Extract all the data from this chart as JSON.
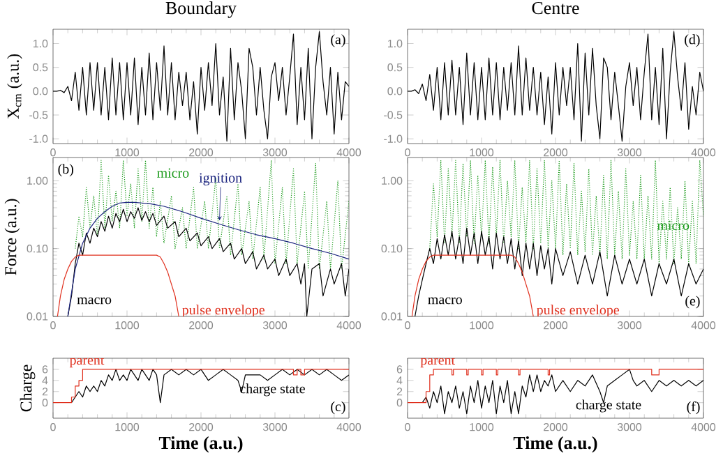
{
  "chart_data": [
    {
      "type": "line",
      "title": "Boundary",
      "ylabel": "X$_{cm}$  (a.u.)",
      "xlim": [
        0,
        4000
      ],
      "ylim": [
        -1.1,
        1.3
      ],
      "xticks": [
        0,
        1000,
        2000,
        3000,
        4000
      ],
      "yticks": [
        {
          "value": -1,
          "label": "-1.0"
        },
        {
          "value": -0.5,
          "label": "-0.5"
        },
        {
          "value": 0,
          "label": "0.0"
        },
        {
          "value": 0.5,
          "label": "0.5"
        },
        {
          "value": 1,
          "label": "1.0"
        }
      ],
      "annotations": [
        "(a)"
      ],
      "series": [
        {
          "color": "#000000",
          "x": [
            0,
            50,
            100,
            150,
            200,
            250,
            300,
            350,
            400,
            450,
            500,
            550,
            600,
            650,
            700,
            750,
            800,
            850,
            900,
            950,
            1000,
            1050,
            1100,
            1150,
            1200,
            1250,
            1300,
            1350,
            1400,
            1450,
            1500,
            1550,
            1600,
            1650,
            1700,
            1750,
            1800,
            1850,
            1900,
            1950,
            2000,
            2050,
            2100,
            2150,
            2200,
            2250,
            2300,
            2350,
            2400,
            2450,
            2500,
            2550,
            2600,
            2650,
            2700,
            2750,
            2800,
            2850,
            2900,
            2950,
            3000,
            3050,
            3100,
            3150,
            3200,
            3250,
            3300,
            3350,
            3400,
            3450,
            3500,
            3550,
            3600,
            3650,
            3700,
            3750,
            3800,
            3850,
            3900,
            3950,
            4000
          ],
          "values": [
            0,
            0,
            0.02,
            -0.03,
            0.1,
            -0.2,
            0.4,
            -0.4,
            0.5,
            -0.5,
            0.6,
            -0.4,
            0.6,
            -0.5,
            0.5,
            -0.6,
            0.7,
            -0.5,
            0.6,
            -0.6,
            0.6,
            -0.5,
            0.7,
            -0.7,
            0.5,
            -0.5,
            0.8,
            -0.6,
            0.6,
            -0.4,
            0.95,
            -0.5,
            0.6,
            -0.6,
            0.4,
            -0.3,
            0.4,
            -0.6,
            0.2,
            -0.9,
            0.5,
            -0.4,
            0.6,
            -0.3,
            1.0,
            -0.5,
            0.3,
            -1.05,
            0.9,
            -0.6,
            0.6,
            0.0,
            -1.0,
            0.9,
            0.5,
            -0.5,
            0.5,
            -0.4,
            -1.0,
            0.3,
            0.6,
            -0.2,
            0.5,
            -0.5,
            0.3,
            1.2,
            -0.7,
            0.5,
            -0.6,
            0.9,
            -1.0,
            0.5,
            1.25,
            0.2,
            -0.5,
            0.5,
            -0.9,
            0.4,
            -0.6,
            0.2,
            0.1
          ]
        }
      ]
    },
    {
      "type": "line",
      "ylabel": "Force  (a.u.)",
      "log": "y",
      "xlim": [
        0,
        4000
      ],
      "ylim": [
        0.01,
        2.2
      ],
      "xticks": [
        0,
        1000,
        2000,
        3000,
        4000
      ],
      "yticks": [
        {
          "value": 0.01,
          "label": "0.01"
        },
        {
          "value": 0.1,
          "label": "0.10"
        },
        {
          "value": 1,
          "label": "1.00"
        }
      ],
      "annotations": [
        "(b)"
      ],
      "series": [
        {
          "name": "micro",
          "color": "#1a9a1a",
          "line_style": "dotted",
          "x": [
            300,
            350,
            400,
            450,
            500,
            550,
            600,
            650,
            700,
            750,
            800,
            850,
            900,
            950,
            1000,
            1050,
            1100,
            1150,
            1200,
            1250,
            1300,
            1350,
            1400,
            1450,
            1500,
            1600,
            1650,
            1750,
            1800,
            1900,
            1950,
            2050,
            2100,
            2200,
            2250,
            2350,
            2400,
            2500,
            2550,
            2650,
            2700,
            2800,
            2850,
            2950,
            3000,
            3100,
            3150,
            3250,
            3300,
            3400,
            3450,
            3550,
            3600,
            3700,
            3750,
            3850,
            3900,
            4000
          ],
          "values": [
            0.1,
            0.3,
            0.15,
            0.8,
            0.2,
            0.6,
            0.15,
            2.0,
            0.2,
            1.2,
            0.25,
            0.7,
            0.2,
            2.0,
            0.3,
            0.9,
            0.2,
            1.5,
            0.25,
            2.0,
            0.2,
            0.8,
            0.15,
            0.5,
            0.12,
            0.6,
            0.1,
            0.4,
            0.1,
            0.8,
            0.1,
            0.5,
            0.1,
            1.1,
            0.1,
            0.6,
            0.08,
            0.9,
            0.08,
            0.5,
            0.07,
            0.8,
            0.07,
            2.0,
            0.06,
            0.8,
            0.06,
            1.5,
            0.06,
            0.7,
            0.05,
            1.8,
            0.05,
            0.5,
            0.05,
            1.0,
            0.05,
            0.5
          ]
        },
        {
          "name": "macro",
          "color": "#000000",
          "x": [
            200,
            250,
            300,
            350,
            400,
            450,
            500,
            550,
            600,
            650,
            700,
            750,
            800,
            850,
            900,
            950,
            1000,
            1050,
            1100,
            1150,
            1200,
            1250,
            1300,
            1350,
            1400,
            1500,
            1550,
            1650,
            1700,
            1800,
            1850,
            1950,
            2000,
            2100,
            2150,
            2250,
            2300,
            2400,
            2450,
            2550,
            2600,
            2700,
            2750,
            2850,
            2900,
            3000,
            3050,
            3150,
            3200,
            3300,
            3350,
            3400,
            3430,
            3500,
            3600,
            3650,
            3750,
            3800,
            3900,
            3950,
            4000
          ],
          "values": [
            0.01,
            0.02,
            0.06,
            0.12,
            0.08,
            0.17,
            0.12,
            0.2,
            0.15,
            0.25,
            0.18,
            0.3,
            0.2,
            0.33,
            0.25,
            0.38,
            0.25,
            0.35,
            0.28,
            0.4,
            0.26,
            0.35,
            0.25,
            0.33,
            0.22,
            0.3,
            0.2,
            0.25,
            0.15,
            0.2,
            0.13,
            0.17,
            0.11,
            0.15,
            0.1,
            0.14,
            0.09,
            0.12,
            0.07,
            0.1,
            0.06,
            0.09,
            0.05,
            0.08,
            0.05,
            0.07,
            0.04,
            0.07,
            0.04,
            0.06,
            0.03,
            0.06,
            0.01,
            0.05,
            0.06,
            0.02,
            0.05,
            0.03,
            0.06,
            0.02,
            0.05
          ]
        },
        {
          "name": "ignition",
          "color": "#1a237e",
          "x": [
            200,
            300,
            400,
            500,
            600,
            700,
            800,
            900,
            1000,
            1100,
            1200,
            1300,
            1500,
            1750,
            2000,
            2250,
            2500,
            2750,
            3000,
            3250,
            3500,
            3750,
            4000
          ],
          "values": [
            0.01,
            0.05,
            0.12,
            0.2,
            0.28,
            0.35,
            0.42,
            0.47,
            0.48,
            0.48,
            0.47,
            0.46,
            0.42,
            0.35,
            0.28,
            0.23,
            0.19,
            0.16,
            0.14,
            0.12,
            0.1,
            0.085,
            0.07
          ]
        },
        {
          "name": "pulse envelope",
          "color": "#e0301e",
          "x": [
            60,
            100,
            150,
            200,
            250,
            300,
            350,
            1400,
            1450,
            1500,
            1550,
            1600,
            1650,
            1700
          ],
          "values": [
            0.01,
            0.02,
            0.035,
            0.05,
            0.065,
            0.075,
            0.08,
            0.08,
            0.075,
            0.06,
            0.045,
            0.03,
            0.02,
            0.01
          ]
        }
      ]
    },
    {
      "type": "line",
      "ylabel": "Charge",
      "xlabel": "Time  (a.u.)",
      "xlim": [
        0,
        4000
      ],
      "ylim": [
        -2.8,
        8
      ],
      "xticks": [
        0,
        1000,
        2000,
        3000,
        4000
      ],
      "yticks": [
        0,
        2,
        4,
        6
      ],
      "annotations": [
        "(c)"
      ],
      "series": [
        {
          "name": "charge state",
          "color": "#000000",
          "x": [
            250,
            300,
            350,
            400,
            450,
            500,
            550,
            600,
            650,
            700,
            750,
            800,
            850,
            900,
            950,
            1000,
            1050,
            1100,
            1150,
            1200,
            1250,
            1300,
            1350,
            1400,
            1450,
            1500,
            1600,
            1700,
            1800,
            1900,
            2000,
            2100,
            2200,
            2300,
            2400,
            2500,
            2550,
            2600,
            2700,
            2800,
            2900,
            3000,
            3100,
            3200,
            3300,
            3400,
            3500,
            3600,
            3700,
            3800,
            3900,
            4000
          ],
          "values": [
            0,
            1,
            2,
            1,
            3,
            2,
            3,
            2,
            4,
            3,
            5,
            4,
            6,
            4,
            5,
            4,
            6,
            5,
            4,
            6,
            5,
            4,
            6,
            5,
            0,
            5,
            6,
            5,
            6,
            5,
            6,
            4,
            5,
            6,
            5,
            4,
            2,
            5,
            5,
            5,
            4,
            5,
            6,
            5,
            6,
            5,
            6,
            5,
            6,
            5,
            4,
            5
          ]
        },
        {
          "name": "parent",
          "type": "step",
          "color": "#e0301e",
          "x": [
            0,
            200,
            250,
            300,
            350,
            400,
            3250,
            3300,
            3350,
            3400,
            4000
          ],
          "values": [
            0,
            0,
            1,
            3,
            4,
            6,
            5,
            6,
            5,
            6,
            6
          ]
        }
      ]
    },
    {
      "type": "line",
      "title": "Centre",
      "xlim": [
        0,
        4000
      ],
      "ylim": [
        -1.1,
        1.3
      ],
      "xticks": [
        0,
        1000,
        2000,
        3000,
        4000
      ],
      "yticks": [
        {
          "value": -1,
          "label": "-1.0"
        },
        {
          "value": -0.5,
          "label": "-0.5"
        },
        {
          "value": 0,
          "label": "0.0"
        },
        {
          "value": 0.5,
          "label": "0.5"
        },
        {
          "value": 1,
          "label": "1.0"
        }
      ],
      "annotations": [
        "(d)"
      ],
      "series": [
        {
          "color": "#000000",
          "x": [
            0,
            50,
            100,
            150,
            200,
            250,
            300,
            350,
            400,
            450,
            500,
            550,
            600,
            650,
            700,
            750,
            800,
            850,
            900,
            950,
            1000,
            1050,
            1100,
            1150,
            1200,
            1250,
            1300,
            1350,
            1400,
            1450,
            1500,
            1550,
            1600,
            1650,
            1700,
            1750,
            1800,
            1850,
            1900,
            1950,
            2000,
            2050,
            2100,
            2150,
            2200,
            2250,
            2300,
            2350,
            2400,
            2450,
            2500,
            2550,
            2600,
            2650,
            2700,
            2750,
            2800,
            2850,
            2900,
            2950,
            3000,
            3050,
            3100,
            3150,
            3200,
            3250,
            3300,
            3350,
            3400,
            3450,
            3500,
            3550,
            3600,
            3650,
            3700,
            3750,
            3800,
            3850,
            3900,
            3950,
            4000
          ],
          "values": [
            0,
            0,
            0.03,
            -0.05,
            0.15,
            -0.2,
            0.35,
            -0.4,
            0.5,
            -0.6,
            0.6,
            -0.5,
            0.65,
            -0.5,
            0.5,
            -0.7,
            0.8,
            -0.5,
            0.6,
            -0.6,
            0.5,
            -0.6,
            0.7,
            -0.5,
            0.6,
            -0.6,
            0.5,
            -0.4,
            0.6,
            -0.5,
            0.95,
            -0.5,
            0.7,
            -0.4,
            0.5,
            -0.5,
            0.4,
            -0.7,
            0.3,
            -0.9,
            0.6,
            -0.5,
            0.5,
            -0.3,
            0.5,
            -0.6,
            1.0,
            -1.05,
            0.8,
            -0.5,
            0.9,
            -0.3,
            -1.0,
            0.7,
            0.5,
            -0.6,
            0.4,
            -0.3,
            -1.05,
            0.1,
            0.6,
            -0.3,
            0.5,
            -0.6,
            0.4,
            1.2,
            -0.6,
            0.5,
            -0.7,
            0.9,
            -1.0,
            0.4,
            1.25,
            0.3,
            -0.4,
            0.6,
            -0.8,
            0.1,
            -0.5,
            0.4,
            0.0
          ]
        }
      ]
    },
    {
      "type": "line",
      "log": "y",
      "xlim": [
        0,
        4000
      ],
      "ylim": [
        0.01,
        2.2
      ],
      "xticks": [
        0,
        1000,
        2000,
        3000,
        4000
      ],
      "yticks": [
        {
          "value": 0.01,
          "label": "0.01"
        },
        {
          "value": 0.1,
          "label": "0.10"
        },
        {
          "value": 1,
          "label": "1.00"
        }
      ],
      "annotations": [
        "(e)"
      ],
      "series": [
        {
          "name": "micro",
          "color": "#1a9a1a",
          "line_style": "dotted",
          "x": [
            300,
            350,
            400,
            450,
            500,
            550,
            600,
            650,
            700,
            750,
            800,
            850,
            900,
            950,
            1000,
            1050,
            1100,
            1150,
            1200,
            1250,
            1300,
            1350,
            1400,
            1450,
            1500,
            1550,
            1600,
            1650,
            1700,
            1750,
            1800,
            1850,
            1900,
            1950,
            2000,
            2050,
            2100,
            2150,
            2200,
            2250,
            2300,
            2350,
            2400,
            2450,
            2500,
            2550,
            2600,
            2650,
            2700,
            2750,
            2800,
            2850,
            2900,
            2950,
            3000,
            3050,
            3100,
            3150,
            3200,
            3250,
            3300,
            3350,
            3400,
            3450,
            3500,
            3550,
            3600,
            3650,
            3700,
            3750,
            3800,
            3850,
            3900,
            3950,
            4000
          ],
          "values": [
            0.1,
            0.9,
            0.15,
            2.0,
            0.12,
            1.5,
            0.15,
            2.0,
            0.12,
            1.8,
            0.15,
            2.0,
            0.12,
            1.2,
            0.15,
            2.0,
            0.12,
            1.6,
            0.15,
            2.0,
            0.12,
            1.0,
            0.15,
            2.0,
            0.1,
            0.8,
            0.12,
            2.0,
            0.1,
            1.5,
            0.12,
            2.0,
            0.1,
            1.0,
            0.1,
            2.0,
            0.08,
            0.9,
            0.1,
            1.8,
            0.08,
            0.7,
            0.09,
            1.5,
            0.08,
            0.6,
            0.08,
            1.2,
            0.07,
            2.0,
            0.08,
            0.7,
            0.07,
            1.5,
            0.08,
            0.5,
            0.07,
            1.2,
            0.07,
            0.6,
            0.07,
            2.0,
            0.06,
            0.5,
            0.07,
            0.8,
            0.06,
            0.4,
            0.07,
            1.0,
            0.06,
            0.5,
            0.06,
            2.0,
            0.3
          ]
        },
        {
          "name": "macro",
          "color": "#000000",
          "x": [
            100,
            150,
            200,
            250,
            300,
            350,
            400,
            450,
            500,
            550,
            600,
            650,
            700,
            750,
            800,
            850,
            900,
            950,
            1000,
            1050,
            1100,
            1150,
            1200,
            1250,
            1300,
            1350,
            1400,
            1450,
            1500,
            1550,
            1600,
            1650,
            1700,
            1750,
            1800,
            1850,
            1900,
            1950,
            2000,
            2100,
            2200,
            2300,
            2400,
            2500,
            2600,
            2700,
            2800,
            2900,
            3000,
            3100,
            3200,
            3300,
            3400,
            3500,
            3600,
            3700,
            3800,
            3900,
            4000
          ],
          "values": [
            0.01,
            0.02,
            0.035,
            0.06,
            0.1,
            0.06,
            0.14,
            0.07,
            0.16,
            0.08,
            0.18,
            0.07,
            0.15,
            0.06,
            0.2,
            0.08,
            0.17,
            0.06,
            0.18,
            0.08,
            0.15,
            0.05,
            0.17,
            0.07,
            0.15,
            0.06,
            0.14,
            0.05,
            0.13,
            0.04,
            0.12,
            0.05,
            0.12,
            0.04,
            0.11,
            0.05,
            0.1,
            0.03,
            0.1,
            0.04,
            0.09,
            0.03,
            0.08,
            0.03,
            0.09,
            0.02,
            0.08,
            0.03,
            0.07,
            0.03,
            0.07,
            0.02,
            0.06,
            0.03,
            0.07,
            0.02,
            0.06,
            0.03,
            0.05
          ]
        },
        {
          "name": "pulse envelope",
          "color": "#e0301e",
          "x": [
            60,
            100,
            150,
            200,
            250,
            300,
            350,
            1400,
            1450,
            1500,
            1550,
            1600,
            1650,
            1700
          ],
          "values": [
            0.01,
            0.02,
            0.035,
            0.05,
            0.065,
            0.075,
            0.08,
            0.08,
            0.075,
            0.06,
            0.045,
            0.03,
            0.02,
            0.01
          ]
        }
      ]
    },
    {
      "type": "line",
      "xlabel": "Time  (a.u.)",
      "xlim": [
        0,
        4000
      ],
      "ylim": [
        -2.8,
        8
      ],
      "xticks": [
        0,
        1000,
        2000,
        3000,
        4000
      ],
      "yticks": [
        0,
        2,
        4,
        6
      ],
      "annotations": [
        "(f)"
      ],
      "series": [
        {
          "name": "charge state",
          "color": "#000000",
          "x": [
            200,
            250,
            300,
            350,
            400,
            450,
            500,
            550,
            600,
            650,
            700,
            750,
            800,
            850,
            900,
            950,
            1000,
            1050,
            1100,
            1150,
            1200,
            1250,
            1300,
            1350,
            1400,
            1450,
            1500,
            1550,
            1600,
            1650,
            1700,
            1750,
            1800,
            1850,
            1900,
            1950,
            2000,
            2100,
            2200,
            2300,
            2400,
            2500,
            2600,
            2650,
            2700,
            2800,
            2900,
            3000,
            3050,
            3100,
            3200,
            3300,
            3400,
            3500,
            3600,
            3700,
            3800,
            3900,
            4000
          ],
          "values": [
            0,
            1,
            -1,
            2,
            0,
            3,
            -2,
            2,
            0,
            3,
            -1,
            2,
            -2,
            3,
            0,
            4,
            -1,
            3,
            0,
            4,
            -2,
            3,
            0,
            4,
            -2,
            2,
            -2,
            3,
            1,
            5,
            2,
            5,
            2,
            4,
            3,
            5,
            2,
            4,
            2,
            4,
            3,
            5,
            2,
            0,
            3,
            4,
            5,
            6,
            4,
            3,
            4,
            2,
            4,
            3,
            4,
            3,
            4,
            3,
            4
          ]
        },
        {
          "name": "parent",
          "type": "step",
          "color": "#e0301e",
          "x": [
            0,
            200,
            250,
            300,
            350,
            600,
            620,
            800,
            820,
            1000,
            1020,
            1200,
            1220,
            1500,
            1520,
            1900,
            1920,
            3300,
            3400,
            4000
          ],
          "values": [
            0,
            0,
            2,
            5,
            6,
            5,
            6,
            5,
            6,
            5,
            6,
            5,
            6,
            5,
            6,
            5,
            6,
            5,
            6,
            6
          ]
        }
      ]
    }
  ]
}
